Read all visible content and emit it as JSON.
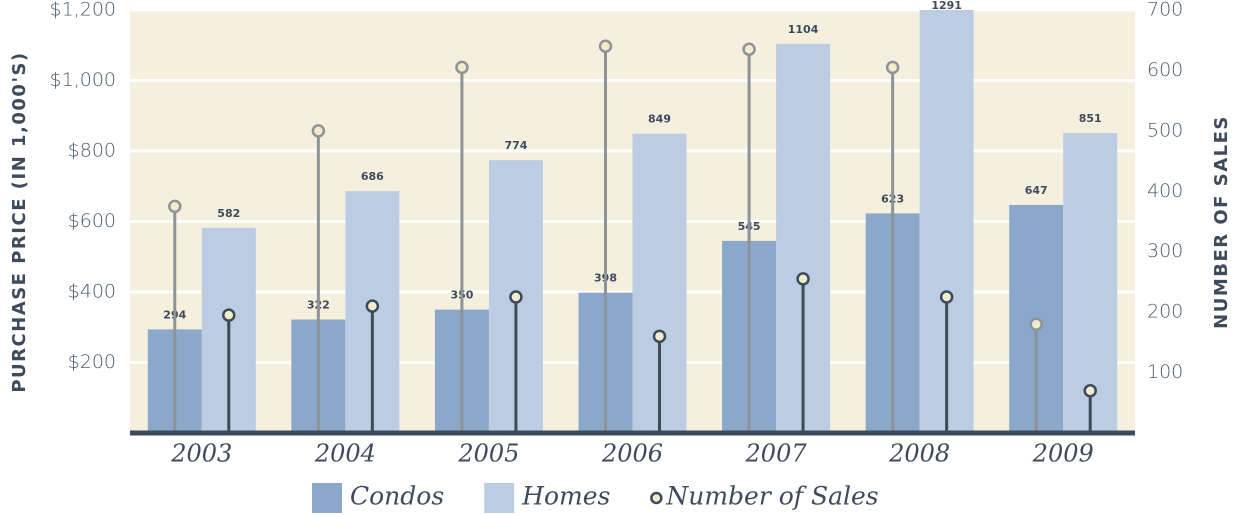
{
  "chart_data": {
    "type": "bar",
    "y_label": "PURCHASE PRICE (IN 1,000'S)",
    "y2_label": "NUMBER OF SALES",
    "categories": [
      "2003",
      "2004",
      "2005",
      "2006",
      "2007",
      "2008",
      "2009"
    ],
    "series": [
      {
        "name": "Condos",
        "color": "#8ba7c9",
        "values": [
          294,
          322,
          350,
          398,
          545,
          623,
          647
        ]
      },
      {
        "name": "Homes",
        "color": "#bccde3",
        "values": [
          582,
          686,
          774,
          849,
          1104,
          1291,
          851
        ]
      },
      {
        "name": "Number of Sales",
        "color": "#3d4a5c",
        "axis": "y2",
        "values": [
          195,
          210,
          225,
          160,
          255,
          225,
          70
        ]
      },
      {
        "color": "#8c9399",
        "axis": "y2",
        "values": [
          375,
          500,
          605,
          640,
          635,
          605,
          180
        ]
      }
    ],
    "ylim": [
      0,
      1200
    ],
    "yticks": [
      {
        "value": 200,
        "label": "$200"
      },
      {
        "value": 400,
        "label": "$400"
      },
      {
        "value": 600,
        "label": "$600"
      },
      {
        "value": 800,
        "label": "$800"
      },
      {
        "value": 1000,
        "label": "$1,000"
      },
      {
        "value": 1200,
        "label": "$1,200"
      }
    ],
    "y2lim": [
      0,
      700
    ],
    "y2ticks": [
      100,
      200,
      300,
      400,
      500,
      600,
      700
    ],
    "grid": true,
    "background": "#f5f0de"
  }
}
